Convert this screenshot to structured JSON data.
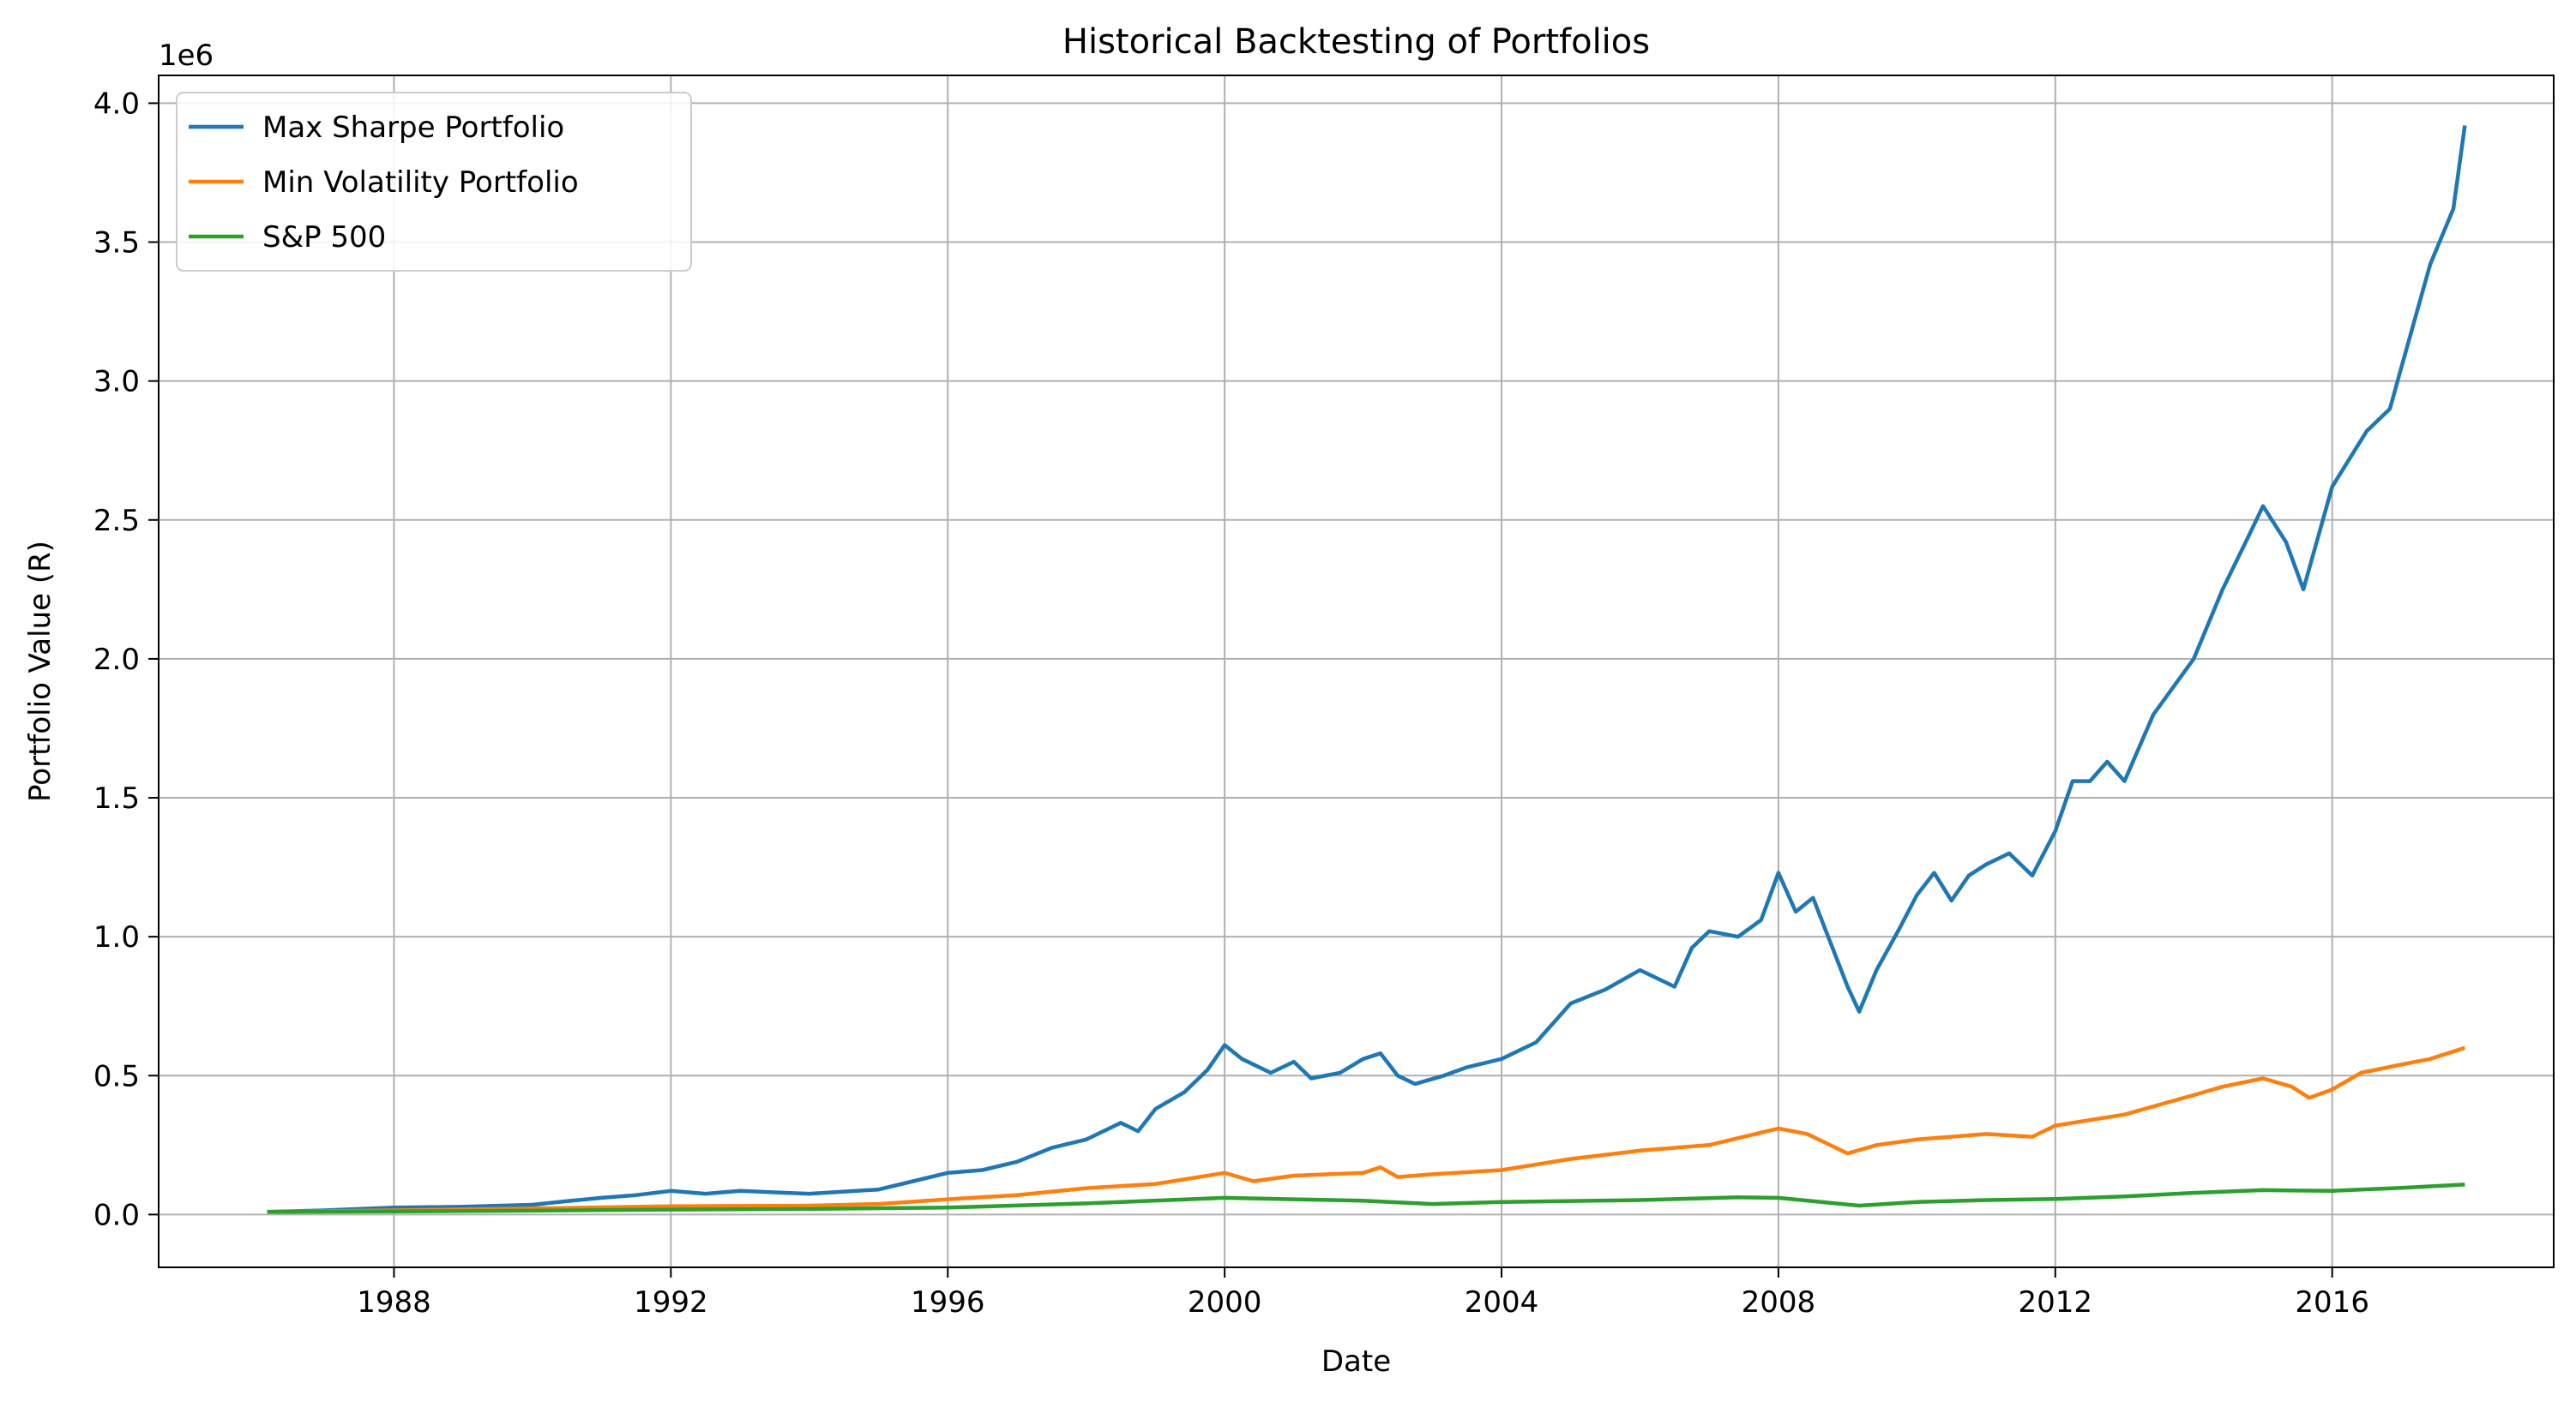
{
  "chart_data": {
    "type": "line",
    "title": "Historical Backtesting of Portfolios",
    "xlabel": "Date",
    "ylabel": "Portfolio Value (R)",
    "y_offset_label": "1e6",
    "y_scale_multiplier": 1000000,
    "x_range_years": [
      1984.6,
      2019.2
    ],
    "ylim": [
      -190000,
      4100000
    ],
    "x_ticks": [
      {
        "year": 1988,
        "label": "1988"
      },
      {
        "year": 1992,
        "label": "1992"
      },
      {
        "year": 1996,
        "label": "1996"
      },
      {
        "year": 2000,
        "label": "2000"
      },
      {
        "year": 2004,
        "label": "2004"
      },
      {
        "year": 2008,
        "label": "2008"
      },
      {
        "year": 2012,
        "label": "2012"
      },
      {
        "year": 2016,
        "label": "2016"
      }
    ],
    "y_ticks": [
      {
        "value": 0,
        "label": "0.0"
      },
      {
        "value": 500000,
        "label": "0.5"
      },
      {
        "value": 1000000,
        "label": "1.0"
      },
      {
        "value": 1500000,
        "label": "1.5"
      },
      {
        "value": 2000000,
        "label": "2.0"
      },
      {
        "value": 2500000,
        "label": "2.5"
      },
      {
        "value": 3000000,
        "label": "3.0"
      },
      {
        "value": 3500000,
        "label": "3.5"
      },
      {
        "value": 4000000,
        "label": "4.0"
      }
    ],
    "grid": true,
    "legend_position": "upper-left",
    "series": [
      {
        "name": "Max Sharpe Portfolio",
        "color": "#1f77b4",
        "points": [
          [
            "1986-03-01",
            10000
          ],
          [
            "1987-01-01",
            15000
          ],
          [
            "1988-01-01",
            25000
          ],
          [
            "1989-01-01",
            28000
          ],
          [
            "1990-01-01",
            35000
          ],
          [
            "1990-07-01",
            48000
          ],
          [
            "1991-01-01",
            60000
          ],
          [
            "1991-07-01",
            70000
          ],
          [
            "1992-01-01",
            85000
          ],
          [
            "1992-07-01",
            75000
          ],
          [
            "1993-01-01",
            85000
          ],
          [
            "1993-07-01",
            80000
          ],
          [
            "1994-01-01",
            75000
          ],
          [
            "1995-01-01",
            90000
          ],
          [
            "1995-07-01",
            120000
          ],
          [
            "1996-01-01",
            150000
          ],
          [
            "1996-07-01",
            160000
          ],
          [
            "1997-01-01",
            190000
          ],
          [
            "1997-07-01",
            240000
          ],
          [
            "1998-01-01",
            270000
          ],
          [
            "1998-07-01",
            330000
          ],
          [
            "1998-10-01",
            300000
          ],
          [
            "1999-01-01",
            380000
          ],
          [
            "1999-06-01",
            440000
          ],
          [
            "1999-10-01",
            520000
          ],
          [
            "2000-01-01",
            610000
          ],
          [
            "2000-04-01",
            560000
          ],
          [
            "2000-09-01",
            510000
          ],
          [
            "2001-01-01",
            550000
          ],
          [
            "2001-04-01",
            490000
          ],
          [
            "2001-09-01",
            510000
          ],
          [
            "2002-01-01",
            560000
          ],
          [
            "2002-04-01",
            580000
          ],
          [
            "2002-07-01",
            500000
          ],
          [
            "2002-10-01",
            470000
          ],
          [
            "2003-03-01",
            500000
          ],
          [
            "2003-07-01",
            530000
          ],
          [
            "2004-01-01",
            560000
          ],
          [
            "2004-07-01",
            620000
          ],
          [
            "2005-01-01",
            760000
          ],
          [
            "2005-07-01",
            810000
          ],
          [
            "2006-01-01",
            880000
          ],
          [
            "2006-07-01",
            820000
          ],
          [
            "2006-10-01",
            960000
          ],
          [
            "2007-01-01",
            1020000
          ],
          [
            "2007-06-01",
            1000000
          ],
          [
            "2007-10-01",
            1060000
          ],
          [
            "2008-01-01",
            1230000
          ],
          [
            "2008-04-01",
            1090000
          ],
          [
            "2008-07-01",
            1140000
          ],
          [
            "2008-10-01",
            980000
          ],
          [
            "2009-01-01",
            820000
          ],
          [
            "2009-03-01",
            730000
          ],
          [
            "2009-06-01",
            880000
          ],
          [
            "2009-10-01",
            1030000
          ],
          [
            "2010-01-01",
            1150000
          ],
          [
            "2010-04-01",
            1230000
          ],
          [
            "2010-07-01",
            1130000
          ],
          [
            "2010-10-01",
            1220000
          ],
          [
            "2011-01-01",
            1260000
          ],
          [
            "2011-05-01",
            1300000
          ],
          [
            "2011-09-01",
            1220000
          ],
          [
            "2012-01-01",
            1380000
          ],
          [
            "2012-04-01",
            1560000
          ],
          [
            "2012-07-01",
            1560000
          ],
          [
            "2012-10-01",
            1630000
          ],
          [
            "2013-01-01",
            1560000
          ],
          [
            "2013-06-01",
            1800000
          ],
          [
            "2014-01-01",
            2000000
          ],
          [
            "2014-06-01",
            2250000
          ],
          [
            "2014-10-01",
            2420000
          ],
          [
            "2015-01-01",
            2550000
          ],
          [
            "2015-05-01",
            2420000
          ],
          [
            "2015-08-01",
            2250000
          ],
          [
            "2016-01-01",
            2620000
          ],
          [
            "2016-07-01",
            2820000
          ],
          [
            "2016-11-01",
            2900000
          ],
          [
            "2017-01-01",
            3050000
          ],
          [
            "2017-06-01",
            3420000
          ],
          [
            "2017-10-01",
            3620000
          ],
          [
            "2017-12-01",
            3920000
          ]
        ]
      },
      {
        "name": "Min Volatility Portfolio",
        "color": "#ff7f0e",
        "points": [
          [
            "1986-03-01",
            10000
          ],
          [
            "1988-01-01",
            15000
          ],
          [
            "1990-01-01",
            22000
          ],
          [
            "1992-01-01",
            30000
          ],
          [
            "1994-01-01",
            32000
          ],
          [
            "1995-01-01",
            38000
          ],
          [
            "1996-01-01",
            55000
          ],
          [
            "1997-01-01",
            70000
          ],
          [
            "1998-01-01",
            95000
          ],
          [
            "1999-01-01",
            110000
          ],
          [
            "2000-01-01",
            150000
          ],
          [
            "2000-06-01",
            120000
          ],
          [
            "2001-01-01",
            140000
          ],
          [
            "2002-01-01",
            150000
          ],
          [
            "2002-04-01",
            170000
          ],
          [
            "2002-07-01",
            135000
          ],
          [
            "2003-01-01",
            145000
          ],
          [
            "2004-01-01",
            160000
          ],
          [
            "2005-01-01",
            200000
          ],
          [
            "2006-01-01",
            230000
          ],
          [
            "2007-01-01",
            250000
          ],
          [
            "2008-01-01",
            310000
          ],
          [
            "2008-06-01",
            290000
          ],
          [
            "2009-01-01",
            220000
          ],
          [
            "2009-06-01",
            250000
          ],
          [
            "2010-01-01",
            270000
          ],
          [
            "2011-01-01",
            290000
          ],
          [
            "2011-09-01",
            280000
          ],
          [
            "2012-01-01",
            320000
          ],
          [
            "2013-01-01",
            360000
          ],
          [
            "2014-01-01",
            430000
          ],
          [
            "2014-06-01",
            460000
          ],
          [
            "2015-01-01",
            490000
          ],
          [
            "2015-06-01",
            460000
          ],
          [
            "2015-09-01",
            420000
          ],
          [
            "2016-01-01",
            450000
          ],
          [
            "2016-06-01",
            510000
          ],
          [
            "2017-01-01",
            540000
          ],
          [
            "2017-06-01",
            560000
          ],
          [
            "2017-12-01",
            600000
          ]
        ]
      },
      {
        "name": "S&P 500",
        "color": "#2ca02c",
        "points": [
          [
            "1986-03-01",
            10000
          ],
          [
            "1988-01-01",
            11000
          ],
          [
            "1990-01-01",
            14000
          ],
          [
            "1992-01-01",
            18000
          ],
          [
            "1994-01-01",
            20000
          ],
          [
            "1996-01-01",
            25000
          ],
          [
            "1998-01-01",
            40000
          ],
          [
            "2000-01-01",
            60000
          ],
          [
            "2001-01-01",
            55000
          ],
          [
            "2002-01-01",
            50000
          ],
          [
            "2003-01-01",
            38000
          ],
          [
            "2004-01-01",
            45000
          ],
          [
            "2006-01-01",
            52000
          ],
          [
            "2007-06-01",
            62000
          ],
          [
            "2008-01-01",
            60000
          ],
          [
            "2009-03-01",
            32000
          ],
          [
            "2010-01-01",
            45000
          ],
          [
            "2011-01-01",
            52000
          ],
          [
            "2012-01-01",
            56000
          ],
          [
            "2013-01-01",
            65000
          ],
          [
            "2014-01-01",
            78000
          ],
          [
            "2015-01-01",
            88000
          ],
          [
            "2016-01-01",
            85000
          ],
          [
            "2016-06-01",
            90000
          ],
          [
            "2017-01-01",
            96000
          ],
          [
            "2017-12-01",
            108000
          ]
        ]
      }
    ]
  }
}
